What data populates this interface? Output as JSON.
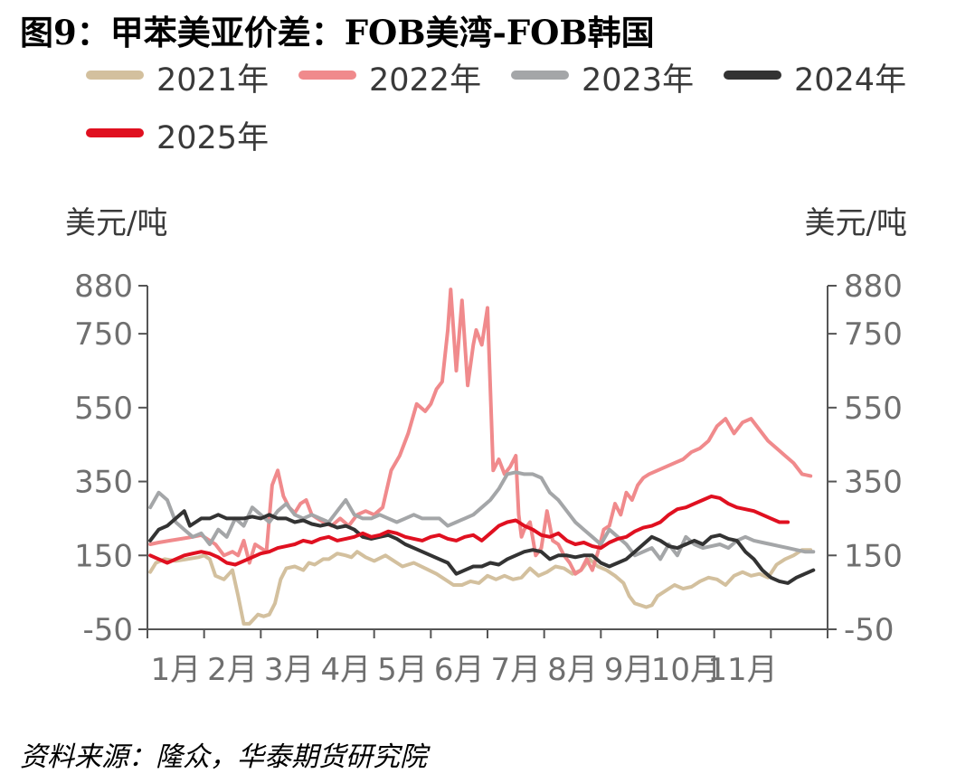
{
  "title": "图9：甲苯美亚价差：FOB美湾-FOB韩国",
  "source": "资料来源：隆众，华泰期货研究院",
  "colors": {
    "2021年": "#d3c09e",
    "2022年": "#f08a8c",
    "2023年": "#a4a6a8",
    "2024年": "#333333",
    "2025年": "#e01020"
  },
  "chart_data": {
    "type": "line",
    "title": "图9：甲苯美亚价差：FOB美湾-FOB韩国",
    "ylabel_left": "美元/吨",
    "ylabel_right": "美元/吨",
    "ylim": [
      -50,
      880
    ],
    "yticks": [
      "880",
      "750",
      "550",
      "350",
      "150",
      "-50"
    ],
    "ytick_values": [
      880,
      750,
      550,
      350,
      150,
      -50
    ],
    "xlim": [
      0,
      12
    ],
    "xticks": [
      "1月",
      "2月",
      "3月",
      "4月",
      "5月",
      "6月",
      "7月",
      "8月",
      "9月",
      "10月",
      "11月"
    ],
    "xtick_positions": [
      0.5,
      1.5,
      2.5,
      3.5,
      4.5,
      5.5,
      6.5,
      7.5,
      8.5,
      9.5,
      10.5
    ],
    "grid": false,
    "legend_position": "top",
    "series": [
      {
        "name": "2021年",
        "x": [
          0.05,
          0.15,
          0.3,
          0.5,
          0.7,
          0.9,
          1.0,
          1.1,
          1.2,
          1.35,
          1.5,
          1.6,
          1.7,
          1.8,
          1.95,
          2.05,
          2.15,
          2.25,
          2.35,
          2.45,
          2.6,
          2.75,
          2.85,
          2.95,
          3.1,
          3.2,
          3.35,
          3.5,
          3.6,
          3.7,
          3.85,
          4.0,
          4.2,
          4.35,
          4.5,
          4.7,
          4.9,
          5.1,
          5.25,
          5.4,
          5.55,
          5.7,
          5.85,
          6.0,
          6.15,
          6.3,
          6.45,
          6.6,
          6.75,
          6.9,
          7.05,
          7.2,
          7.35,
          7.5,
          7.65,
          7.8,
          7.95,
          8.1,
          8.25,
          8.4,
          8.5,
          8.6,
          8.7,
          8.8,
          8.9,
          9.0,
          9.15,
          9.3,
          9.45,
          9.6,
          9.75,
          9.9,
          10.05,
          10.2,
          10.35,
          10.5,
          10.65,
          10.8,
          10.95,
          11.1,
          11.25,
          11.4,
          11.55,
          11.7
        ],
        "values": [
          105,
          130,
          140,
          135,
          140,
          145,
          150,
          140,
          95,
          85,
          110,
          40,
          -35,
          -35,
          -10,
          -15,
          -10,
          20,
          85,
          115,
          120,
          110,
          130,
          125,
          140,
          140,
          155,
          150,
          145,
          160,
          145,
          135,
          150,
          135,
          120,
          130,
          115,
          100,
          85,
          70,
          70,
          80,
          75,
          95,
          85,
          95,
          85,
          90,
          115,
          95,
          105,
          120,
          115,
          100,
          110,
          140,
          120,
          110,
          95,
          75,
          40,
          20,
          15,
          10,
          15,
          40,
          55,
          70,
          60,
          65,
          80,
          90,
          85,
          70,
          95,
          105,
          95,
          100,
          90,
          125,
          140,
          150,
          165,
          165
        ]
      },
      {
        "name": "2022年",
        "x": [
          0.05,
          0.2,
          0.4,
          0.6,
          0.8,
          0.95,
          1.1,
          1.2,
          1.35,
          1.5,
          1.6,
          1.7,
          1.8,
          1.9,
          2.0,
          2.1,
          2.2,
          2.3,
          2.4,
          2.5,
          2.6,
          2.7,
          2.8,
          2.9,
          3.0,
          3.1,
          3.25,
          3.4,
          3.55,
          3.7,
          3.85,
          4.0,
          4.15,
          4.3,
          4.45,
          4.6,
          4.75,
          4.9,
          5.0,
          5.1,
          5.2,
          5.3,
          5.35,
          5.45,
          5.55,
          5.65,
          5.75,
          5.8,
          5.9,
          6.0,
          6.1,
          6.2,
          6.3,
          6.4,
          6.5,
          6.55,
          6.6,
          6.65,
          6.75,
          6.85,
          6.95,
          7.05,
          7.15,
          7.25,
          7.35,
          7.45,
          7.55,
          7.65,
          7.75,
          7.85,
          7.95,
          8.05,
          8.15,
          8.25,
          8.35,
          8.45,
          8.55,
          8.65,
          8.75,
          8.85,
          9.0,
          9.15,
          9.3,
          9.45,
          9.6,
          9.75,
          9.9,
          10.05,
          10.2,
          10.35,
          10.5,
          10.65,
          10.8,
          10.95,
          11.1,
          11.25,
          11.4,
          11.55,
          11.7
        ],
        "values": [
          180,
          185,
          190,
          195,
          200,
          205,
          190,
          180,
          150,
          160,
          150,
          190,
          130,
          180,
          170,
          160,
          340,
          380,
          310,
          280,
          265,
          290,
          300,
          260,
          250,
          240,
          230,
          250,
          230,
          260,
          270,
          260,
          280,
          380,
          420,
          480,
          560,
          540,
          560,
          600,
          620,
          760,
          870,
          650,
          840,
          610,
          720,
          760,
          720,
          820,
          380,
          410,
          370,
          390,
          420,
          260,
          200,
          220,
          240,
          150,
          170,
          270,
          190,
          180,
          150,
          130,
          100,
          110,
          140,
          110,
          160,
          220,
          230,
          290,
          260,
          320,
          300,
          340,
          360,
          370,
          380,
          390,
          400,
          410,
          430,
          440,
          460,
          500,
          520,
          480,
          510,
          520,
          490,
          460,
          440,
          420,
          400,
          370,
          365
        ]
      },
      {
        "name": "2023年",
        "x": [
          0.05,
          0.2,
          0.35,
          0.5,
          0.65,
          0.8,
          0.95,
          1.1,
          1.25,
          1.4,
          1.55,
          1.7,
          1.85,
          2.0,
          2.15,
          2.3,
          2.45,
          2.6,
          2.75,
          2.9,
          3.05,
          3.2,
          3.35,
          3.5,
          3.65,
          3.8,
          3.95,
          4.1,
          4.25,
          4.4,
          4.55,
          4.7,
          4.85,
          5.0,
          5.15,
          5.3,
          5.45,
          5.6,
          5.75,
          5.9,
          6.05,
          6.2,
          6.35,
          6.5,
          6.65,
          6.8,
          6.95,
          7.1,
          7.25,
          7.4,
          7.55,
          7.7,
          7.85,
          8.0,
          8.15,
          8.3,
          8.45,
          8.6,
          8.75,
          8.9,
          9.05,
          9.2,
          9.35,
          9.5,
          9.65,
          9.8,
          9.95,
          10.1,
          10.25,
          10.4,
          10.55,
          10.7,
          10.85,
          11.0,
          11.15,
          11.3,
          11.45,
          11.6,
          11.75
        ],
        "values": [
          280,
          320,
          300,
          240,
          220,
          200,
          210,
          180,
          220,
          200,
          250,
          230,
          280,
          260,
          240,
          270,
          290,
          260,
          250,
          260,
          250,
          240,
          270,
          300,
          260,
          250,
          250,
          260,
          250,
          240,
          250,
          260,
          250,
          250,
          250,
          230,
          240,
          250,
          260,
          280,
          300,
          330,
          370,
          375,
          370,
          370,
          360,
          320,
          300,
          270,
          240,
          220,
          200,
          180,
          220,
          200,
          180,
          150,
          160,
          170,
          140,
          180,
          150,
          200,
          180,
          170,
          175,
          180,
          170,
          190,
          200,
          190,
          185,
          180,
          175,
          170,
          165,
          160,
          160
        ]
      },
      {
        "name": "2024年",
        "x": [
          0.05,
          0.2,
          0.35,
          0.5,
          0.65,
          0.75,
          0.85,
          0.95,
          1.1,
          1.25,
          1.4,
          1.55,
          1.7,
          1.85,
          2.0,
          2.15,
          2.3,
          2.45,
          2.6,
          2.75,
          2.9,
          3.05,
          3.2,
          3.35,
          3.5,
          3.65,
          3.8,
          3.95,
          4.1,
          4.25,
          4.4,
          4.55,
          4.7,
          4.85,
          5.0,
          5.15,
          5.3,
          5.45,
          5.6,
          5.75,
          5.9,
          6.05,
          6.2,
          6.35,
          6.5,
          6.65,
          6.8,
          6.95,
          7.1,
          7.25,
          7.4,
          7.55,
          7.7,
          7.85,
          8.0,
          8.15,
          8.3,
          8.45,
          8.6,
          8.75,
          8.9,
          9.05,
          9.2,
          9.35,
          9.5,
          9.65,
          9.8,
          9.95,
          10.1,
          10.25,
          10.4,
          10.55,
          10.7,
          10.85,
          11.0,
          11.15,
          11.3,
          11.45,
          11.6,
          11.75
        ],
        "values": [
          190,
          220,
          230,
          250,
          270,
          230,
          240,
          250,
          250,
          260,
          250,
          250,
          250,
          255,
          250,
          260,
          250,
          250,
          240,
          245,
          235,
          230,
          235,
          225,
          230,
          220,
          200,
          195,
          200,
          205,
          195,
          180,
          170,
          160,
          150,
          140,
          130,
          100,
          110,
          120,
          120,
          130,
          125,
          140,
          150,
          160,
          165,
          160,
          140,
          150,
          150,
          145,
          150,
          150,
          130,
          120,
          130,
          140,
          160,
          180,
          200,
          190,
          175,
          170,
          180,
          190,
          180,
          200,
          205,
          195,
          190,
          160,
          140,
          110,
          90,
          80,
          75,
          90,
          100,
          110
        ]
      },
      {
        "name": "2025年",
        "x": [
          0.05,
          0.2,
          0.35,
          0.5,
          0.65,
          0.8,
          0.95,
          1.1,
          1.25,
          1.4,
          1.55,
          1.7,
          1.85,
          2.0,
          2.15,
          2.3,
          2.45,
          2.6,
          2.75,
          2.9,
          3.05,
          3.2,
          3.35,
          3.5,
          3.65,
          3.8,
          3.95,
          4.1,
          4.25,
          4.4,
          4.55,
          4.7,
          4.85,
          5.0,
          5.15,
          5.3,
          5.45,
          5.6,
          5.75,
          5.9,
          6.05,
          6.2,
          6.35,
          6.5,
          6.65,
          6.8,
          6.95,
          7.1,
          7.25,
          7.4,
          7.55,
          7.7,
          7.85,
          8.0,
          8.15,
          8.3,
          8.45,
          8.6,
          8.75,
          8.9,
          9.05,
          9.2,
          9.35,
          9.5,
          9.65,
          9.8,
          9.95,
          10.1,
          10.25,
          10.4,
          10.55,
          10.7,
          10.85,
          11.0,
          11.15,
          11.3
        ],
        "values": [
          150,
          140,
          130,
          140,
          150,
          155,
          160,
          155,
          145,
          130,
          125,
          135,
          145,
          155,
          160,
          170,
          175,
          180,
          190,
          185,
          195,
          200,
          190,
          195,
          200,
          210,
          200,
          205,
          215,
          210,
          200,
          195,
          190,
          200,
          205,
          195,
          190,
          200,
          205,
          190,
          210,
          230,
          240,
          245,
          230,
          220,
          205,
          200,
          210,
          190,
          180,
          185,
          175,
          170,
          185,
          195,
          200,
          215,
          225,
          230,
          240,
          260,
          275,
          280,
          290,
          300,
          310,
          305,
          290,
          280,
          275,
          270,
          260,
          250,
          240,
          240
        ]
      }
    ]
  }
}
